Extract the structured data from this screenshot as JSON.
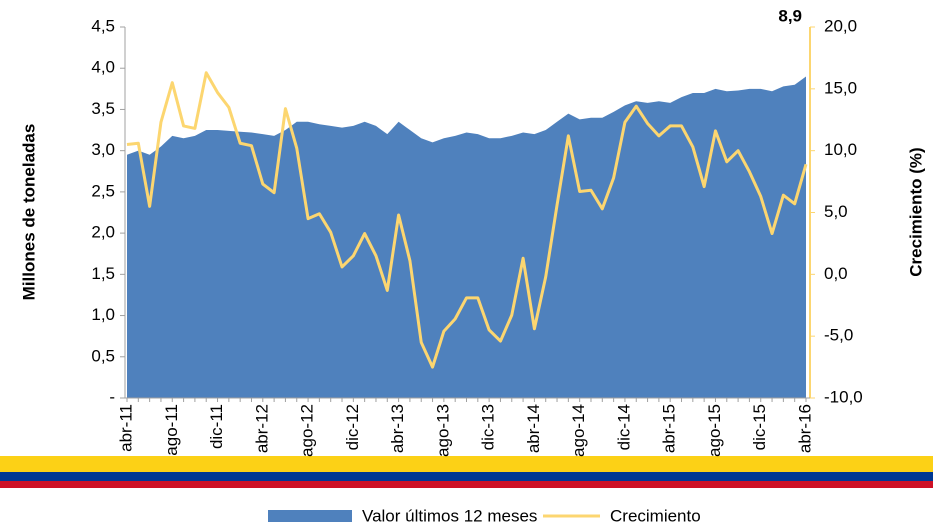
{
  "chart_data": {
    "type": "area-line",
    "y_label": "Millones de toneladas",
    "y2_label": "Crecimiento (%)",
    "categories": [
      "abr-11",
      null,
      null,
      null,
      "ago-11",
      null,
      null,
      null,
      "dic-11",
      null,
      null,
      null,
      "abr-12",
      null,
      null,
      null,
      "ago-12",
      null,
      null,
      null,
      "dic-12",
      null,
      null,
      null,
      "abr-13",
      null,
      null,
      null,
      "ago-13",
      null,
      null,
      null,
      "dic-13",
      null,
      null,
      null,
      "abr-14",
      null,
      null,
      null,
      "ago-14",
      null,
      null,
      null,
      "dic-14",
      null,
      null,
      null,
      "abr-15",
      null,
      null,
      null,
      "ago-15",
      null,
      null,
      null,
      "dic-15",
      null,
      null,
      null,
      "abr-16"
    ],
    "series": [
      {
        "name": "Valor últimos 12 meses",
        "color": "#4f81bd",
        "type": "area",
        "values": [
          2.95,
          3.0,
          2.95,
          3.05,
          3.18,
          3.15,
          3.18,
          3.25,
          3.25,
          3.24,
          3.23,
          3.22,
          3.2,
          3.18,
          3.25,
          3.35,
          3.35,
          3.32,
          3.3,
          3.28,
          3.3,
          3.35,
          3.3,
          3.2,
          3.35,
          3.25,
          3.15,
          3.1,
          3.15,
          3.18,
          3.22,
          3.2,
          3.15,
          3.15,
          3.18,
          3.22,
          3.2,
          3.25,
          3.35,
          3.45,
          3.38,
          3.4,
          3.4,
          3.47,
          3.55,
          3.6,
          3.58,
          3.6,
          3.58,
          3.65,
          3.7,
          3.7,
          3.75,
          3.72,
          3.73,
          3.75,
          3.75,
          3.72,
          3.78,
          3.8,
          3.9
        ]
      },
      {
        "name": "Crecimiento",
        "color": "#fcd670",
        "type": "line",
        "axis": "y2",
        "values": [
          10.5,
          10.6,
          5.5,
          12.3,
          15.5,
          12.0,
          11.8,
          16.3,
          14.7,
          13.5,
          10.6,
          10.4,
          7.3,
          6.6,
          13.4,
          10.2,
          4.5,
          4.9,
          3.4,
          0.6,
          1.5,
          3.3,
          1.5,
          -1.3,
          4.8,
          1.1,
          -5.5,
          -7.5,
          -4.6,
          -3.6,
          -1.9,
          -1.9,
          -4.5,
          -5.4,
          -3.3,
          1.3,
          -4.4,
          -0.2,
          5.6,
          11.2,
          6.7,
          6.8,
          5.3,
          7.8,
          12.3,
          13.6,
          12.2,
          11.2,
          12.0,
          12.0,
          10.3,
          7.1,
          11.6,
          9.1,
          10.0,
          8.3,
          6.3,
          3.3,
          6.4,
          5.7,
          8.9
        ],
        "value_labels": [
          null,
          null,
          null,
          null,
          null,
          null,
          null,
          null,
          null,
          null,
          null,
          null,
          null,
          null,
          null,
          null,
          null,
          null,
          null,
          null,
          null,
          null,
          null,
          null,
          null,
          null,
          null,
          null,
          null,
          null,
          null,
          null,
          null,
          null,
          null,
          null,
          null,
          null,
          null,
          null,
          null,
          null,
          null,
          null,
          null,
          null,
          null,
          null,
          null,
          null,
          null,
          null,
          null,
          null,
          null,
          null,
          null,
          null,
          null,
          null,
          "8,9"
        ]
      }
    ],
    "ylim": [
      0,
      4.5
    ],
    "yticks": [
      {
        "value": 0,
        "label": "-"
      },
      {
        "value": 0.5,
        "label": "0,5"
      },
      {
        "value": 1,
        "label": "1,0"
      },
      {
        "value": 1.5,
        "label": "1,5"
      },
      {
        "value": 2,
        "label": "2,0"
      },
      {
        "value": 2.5,
        "label": "2,5"
      },
      {
        "value": 3,
        "label": "3,0"
      },
      {
        "value": 3.5,
        "label": "3,5"
      },
      {
        "value": 4,
        "label": "4,0"
      },
      {
        "value": 4.5,
        "label": "4,5"
      }
    ],
    "y2lim": [
      -10,
      20
    ],
    "y2ticks": [
      {
        "value": -10,
        "label": "-10,0"
      },
      {
        "value": -5,
        "label": "-5,0"
      },
      {
        "value": 0,
        "label": "0,0"
      },
      {
        "value": 5,
        "label": "5,0"
      },
      {
        "value": 10,
        "label": "10,0"
      },
      {
        "value": 15,
        "label": "15,0"
      },
      {
        "value": 20,
        "label": "20,0"
      }
    ],
    "legend": "bottom"
  }
}
